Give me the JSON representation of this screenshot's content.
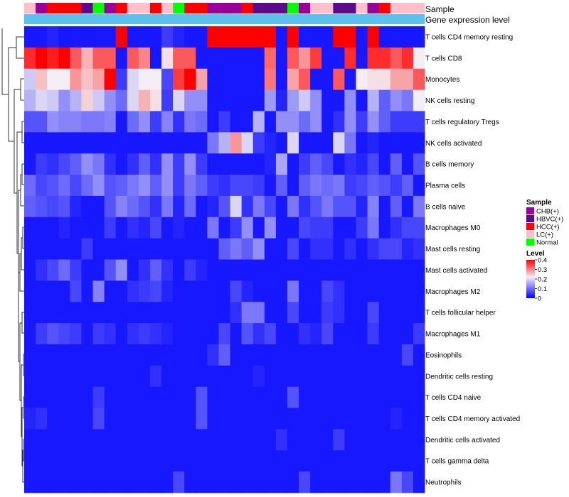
{
  "chart_data": {
    "type": "heatmap",
    "annotation_titles": {
      "sample": "Sample",
      "gene_expression": "Gene expression level"
    },
    "sample_colors": {
      "CHB(+)": "#990099",
      "HBVC(+)": "#5a0a8a",
      "HCC(+)": "#ff0000",
      "LC(+)": "#ffc0cb",
      "Normal": "#00ff00"
    },
    "gene_expression_color": "#5bc0eb",
    "columns": [
      "LC(+)",
      "CHB(+)",
      "HCC(+)",
      "HCC(+)",
      "HCC(+)",
      "HBVC(+)",
      "Normal",
      "CHB(+)",
      "HCC(+)",
      "LC(+)",
      "LC(+)",
      "HCC(+)",
      "LC(+)",
      "Normal",
      "HCC(+)",
      "HCC(+)",
      "CHB(+)",
      "CHB(+)",
      "CHB(+)",
      "HCC(+)",
      "HBVC(+)",
      "HBVC(+)",
      "HBVC(+)",
      "Normal",
      "CHB(+)",
      "LC(+)",
      "LC(+)",
      "HBVC(+)",
      "HBVC(+)",
      "LC(+)",
      "CHB(+)",
      "HCC(+)",
      "LC(+)",
      "LC(+)",
      "LC(+)"
    ],
    "rows": [
      "T cells CD4 memory resting",
      "T cells CD8",
      "Monocytes",
      "NK cells resting",
      "T cells regulatory  Tregs",
      "NK cells activated",
      "B cells memory",
      "Plasma cells",
      "B cells naive",
      "Macrophages M0",
      "Mast cells resting",
      "Mast cells activated",
      "Macrophages M2",
      "T cells follicular helper",
      "Macrophages M1",
      "Eosinophils",
      "Dendritic cells resting",
      "T cells CD4 naive",
      "T cells CD4 memory activated",
      "Dendritic cells activated",
      "T cells gamma delta",
      "Neutrophils"
    ],
    "values": [
      [
        0.02,
        0.02,
        0.03,
        0.02,
        0.02,
        0.02,
        0.02,
        0.02,
        0.4,
        0.02,
        0.02,
        0.02,
        0.05,
        0.03,
        0.02,
        0.02,
        0.4,
        0.4,
        0.4,
        0.37,
        0.4,
        0.4,
        0.02,
        0.36,
        0.02,
        0.02,
        0.02,
        0.4,
        0.4,
        0.02,
        0.4,
        0.02,
        0.02,
        0.02,
        0.02
      ],
      [
        0.33,
        0.36,
        0.34,
        0.36,
        0.3,
        0.24,
        0.3,
        0.3,
        0.02,
        0.3,
        0.27,
        0.02,
        0.21,
        0.3,
        0.3,
        0.02,
        0.02,
        0.02,
        0.02,
        0.02,
        0.02,
        0.29,
        0.02,
        0.3,
        0.26,
        0.32,
        0.02,
        0.02,
        0.33,
        0.02,
        0.33,
        0.33,
        0.3,
        0.33,
        0.2
      ],
      [
        0.17,
        0.23,
        0.2,
        0.2,
        0.26,
        0.23,
        0.25,
        0.37,
        0.05,
        0.18,
        0.2,
        0.2,
        0.06,
        0.32,
        0.4,
        0.25,
        0.02,
        0.02,
        0.02,
        0.02,
        0.02,
        0.28,
        0.02,
        0.25,
        0.3,
        0.02,
        0.02,
        0.3,
        0.02,
        0.2,
        0.21,
        0.21,
        0.25,
        0.25,
        0.3
      ],
      [
        0.15,
        0.18,
        0.17,
        0.12,
        0.15,
        0.22,
        0.17,
        0.12,
        0.09,
        0.18,
        0.24,
        0.21,
        0.05,
        0.18,
        0.12,
        0.12,
        0.02,
        0.02,
        0.02,
        0.02,
        0.02,
        0.13,
        0.03,
        0.13,
        0.17,
        0.12,
        0.02,
        0.02,
        0.12,
        0.02,
        0.15,
        0.08,
        0.12,
        0.1,
        0.2
      ],
      [
        0.07,
        0.07,
        0.12,
        0.11,
        0.11,
        0.1,
        0.1,
        0.11,
        0.02,
        0.09,
        0.12,
        0.05,
        0.11,
        0.04,
        0.1,
        0.09,
        0.02,
        0.05,
        0.02,
        0.02,
        0.15,
        0.02,
        0.12,
        0.12,
        0.09,
        0.12,
        0.02,
        0.04,
        0.12,
        0.05,
        0.12,
        0.08,
        0.05,
        0.05,
        0.05
      ],
      [
        0.02,
        0.02,
        0.02,
        0.02,
        0.02,
        0.02,
        0.02,
        0.02,
        0.02,
        0.02,
        0.02,
        0.02,
        0.02,
        0.02,
        0.02,
        0.02,
        0.1,
        0.15,
        0.26,
        0.18,
        0.05,
        0.03,
        0.02,
        0.18,
        0.02,
        0.02,
        0.02,
        0.18,
        0.1,
        0.02,
        0.03,
        0.02,
        0.02,
        0.02,
        0.02
      ],
      [
        0.02,
        0.05,
        0.04,
        0.06,
        0.08,
        0.12,
        0.1,
        0.04,
        0.02,
        0.04,
        0.08,
        0.04,
        0.12,
        0.05,
        0.12,
        0.05,
        0.02,
        0.02,
        0.02,
        0.02,
        0.02,
        0.03,
        0.14,
        0.02,
        0.05,
        0.08,
        0.06,
        0.02,
        0.04,
        0.03,
        0.06,
        0.02,
        0.08,
        0.02,
        0.07
      ],
      [
        0.09,
        0.06,
        0.07,
        0.09,
        0.06,
        0.09,
        0.12,
        0.07,
        0.08,
        0.1,
        0.12,
        0.08,
        0.12,
        0.05,
        0.1,
        0.08,
        0.05,
        0.04,
        0.06,
        0.06,
        0.05,
        0.02,
        0.08,
        0.02,
        0.08,
        0.1,
        0.09,
        0.1,
        0.05,
        0.06,
        0.08,
        0.07,
        0.05,
        0.08,
        0.02
      ],
      [
        0.08,
        0.07,
        0.06,
        0.07,
        0.03,
        0.02,
        0.02,
        0.07,
        0.11,
        0.09,
        0.07,
        0.04,
        0.1,
        0.03,
        0.09,
        0.02,
        0.03,
        0.07,
        0.18,
        0.04,
        0.1,
        0.06,
        0.02,
        0.1,
        0.04,
        0.07,
        0.1,
        0.07,
        0.07,
        0.03,
        0.11,
        0.02,
        0.08,
        0.02,
        0.1
      ],
      [
        0.02,
        0.02,
        0.02,
        0.03,
        0.02,
        0.02,
        0.02,
        0.05,
        0.02,
        0.04,
        0.03,
        0.06,
        0.02,
        0.03,
        0.02,
        0.02,
        0.1,
        0.02,
        0.05,
        0.12,
        0.02,
        0.12,
        0.02,
        0.02,
        0.06,
        0.05,
        0.05,
        0.02,
        0.02,
        0.05,
        0.1,
        0.02,
        0.04,
        0.06,
        0.06
      ],
      [
        0.02,
        0.02,
        0.02,
        0.02,
        0.02,
        0.05,
        0.02,
        0.02,
        0.02,
        0.02,
        0.02,
        0.02,
        0.02,
        0.02,
        0.02,
        0.02,
        0.02,
        0.08,
        0.1,
        0.08,
        0.12,
        0.02,
        0.02,
        0.06,
        0.02,
        0.04,
        0.04,
        0.02,
        0.04,
        0.02,
        0.04,
        0.06,
        0.06,
        0.03,
        0.04
      ],
      [
        0.02,
        0.04,
        0.06,
        0.09,
        0.05,
        0.02,
        0.02,
        0.07,
        0.12,
        0.02,
        0.04,
        0.08,
        0.04,
        0.02,
        0.05,
        0.03,
        0.02,
        0.02,
        0.02,
        0.02,
        0.02,
        0.02,
        0.02,
        0.02,
        0.02,
        0.02,
        0.02,
        0.02,
        0.02,
        0.02,
        0.02,
        0.02,
        0.02,
        0.02,
        0.02
      ],
      [
        0.02,
        0.02,
        0.02,
        0.02,
        0.06,
        0.02,
        0.11,
        0.02,
        0.02,
        0.04,
        0.05,
        0.06,
        0.03,
        0.02,
        0.02,
        0.02,
        0.02,
        0.02,
        0.06,
        0.03,
        0.02,
        0.02,
        0.02,
        0.1,
        0.02,
        0.02,
        0.06,
        0.04,
        0.02,
        0.02,
        0.02,
        0.02,
        0.02,
        0.02,
        0.02
      ],
      [
        0.02,
        0.02,
        0.02,
        0.02,
        0.02,
        0.02,
        0.02,
        0.02,
        0.02,
        0.02,
        0.02,
        0.02,
        0.02,
        0.02,
        0.02,
        0.02,
        0.02,
        0.02,
        0.04,
        0.1,
        0.1,
        0.02,
        0.02,
        0.06,
        0.02,
        0.02,
        0.05,
        0.04,
        0.02,
        0.02,
        0.06,
        0.02,
        0.02,
        0.02,
        0.02
      ],
      [
        0.02,
        0.05,
        0.07,
        0.06,
        0.05,
        0.02,
        0.05,
        0.04,
        0.02,
        0.04,
        0.05,
        0.04,
        0.03,
        0.02,
        0.02,
        0.02,
        0.02,
        0.06,
        0.02,
        0.07,
        0.04,
        0.06,
        0.02,
        0.02,
        0.04,
        0.03,
        0.06,
        0.02,
        0.02,
        0.02,
        0.05,
        0.02,
        0.02,
        0.02,
        0.05
      ],
      [
        0.02,
        0.02,
        0.02,
        0.02,
        0.02,
        0.02,
        0.02,
        0.02,
        0.02,
        0.02,
        0.02,
        0.02,
        0.02,
        0.02,
        0.02,
        0.02,
        0.04,
        0.08,
        0.02,
        0.02,
        0.02,
        0.02,
        0.02,
        0.02,
        0.02,
        0.02,
        0.02,
        0.02,
        0.02,
        0.02,
        0.02,
        0.02,
        0.02,
        0.06,
        0.02
      ],
      [
        0.02,
        0.02,
        0.02,
        0.02,
        0.02,
        0.02,
        0.02,
        0.02,
        0.02,
        0.02,
        0.02,
        0.04,
        0.02,
        0.02,
        0.02,
        0.02,
        0.02,
        0.02,
        0.02,
        0.02,
        0.03,
        0.02,
        0.02,
        0.02,
        0.02,
        0.02,
        0.02,
        0.02,
        0.02,
        0.02,
        0.02,
        0.02,
        0.02,
        0.02,
        0.02
      ],
      [
        0.02,
        0.02,
        0.02,
        0.02,
        0.02,
        0.02,
        0.05,
        0.02,
        0.02,
        0.02,
        0.02,
        0.02,
        0.02,
        0.02,
        0.02,
        0.07,
        0.02,
        0.02,
        0.02,
        0.02,
        0.02,
        0.02,
        0.02,
        0.07,
        0.02,
        0.02,
        0.02,
        0.02,
        0.02,
        0.02,
        0.02,
        0.02,
        0.02,
        0.02,
        0.02
      ],
      [
        0.03,
        0.04,
        0.02,
        0.02,
        0.02,
        0.02,
        0.06,
        0.02,
        0.02,
        0.02,
        0.02,
        0.02,
        0.02,
        0.02,
        0.02,
        0.07,
        0.02,
        0.02,
        0.02,
        0.02,
        0.02,
        0.02,
        0.02,
        0.02,
        0.02,
        0.02,
        0.02,
        0.02,
        0.02,
        0.02,
        0.02,
        0.02,
        0.03,
        0.02,
        0.02
      ],
      [
        0.02,
        0.02,
        0.02,
        0.02,
        0.02,
        0.02,
        0.02,
        0.02,
        0.02,
        0.02,
        0.02,
        0.02,
        0.02,
        0.02,
        0.02,
        0.02,
        0.02,
        0.02,
        0.02,
        0.02,
        0.02,
        0.02,
        0.04,
        0.02,
        0.02,
        0.02,
        0.02,
        0.05,
        0.02,
        0.02,
        0.02,
        0.02,
        0.02,
        0.02,
        0.02
      ],
      [
        0.02,
        0.02,
        0.02,
        0.02,
        0.02,
        0.02,
        0.02,
        0.02,
        0.02,
        0.02,
        0.02,
        0.02,
        0.02,
        0.02,
        0.02,
        0.02,
        0.02,
        0.02,
        0.02,
        0.02,
        0.02,
        0.02,
        0.02,
        0.02,
        0.02,
        0.02,
        0.02,
        0.02,
        0.02,
        0.02,
        0.02,
        0.02,
        0.02,
        0.02,
        0.02
      ],
      [
        0.02,
        0.02,
        0.02,
        0.02,
        0.02,
        0.02,
        0.02,
        0.02,
        0.02,
        0.02,
        0.02,
        0.02,
        0.02,
        0.06,
        0.02,
        0.02,
        0.02,
        0.02,
        0.02,
        0.02,
        0.02,
        0.02,
        0.02,
        0.02,
        0.06,
        0.02,
        0.02,
        0.02,
        0.02,
        0.02,
        0.02,
        0.02,
        0.1,
        0.06,
        0.02
      ]
    ],
    "color_scale": {
      "low": "#0000ff",
      "mid": "#f3eef3",
      "high": "#ff0000",
      "min": 0,
      "max": 0.45
    },
    "legend": {
      "sample_title": "Sample",
      "sample_items": [
        "CHB(+)",
        "HBVC(+)",
        "HCC(+)",
        "LC(+)",
        "Normal"
      ],
      "level_title": "Level",
      "level_ticks": [
        "0.4",
        "0.3",
        "0.2",
        "0.1",
        "0"
      ],
      "level_tick_values": [
        0.4,
        0.3,
        0.2,
        0.1,
        0
      ],
      "placement": "right"
    },
    "dendrogram": "rows-left"
  }
}
